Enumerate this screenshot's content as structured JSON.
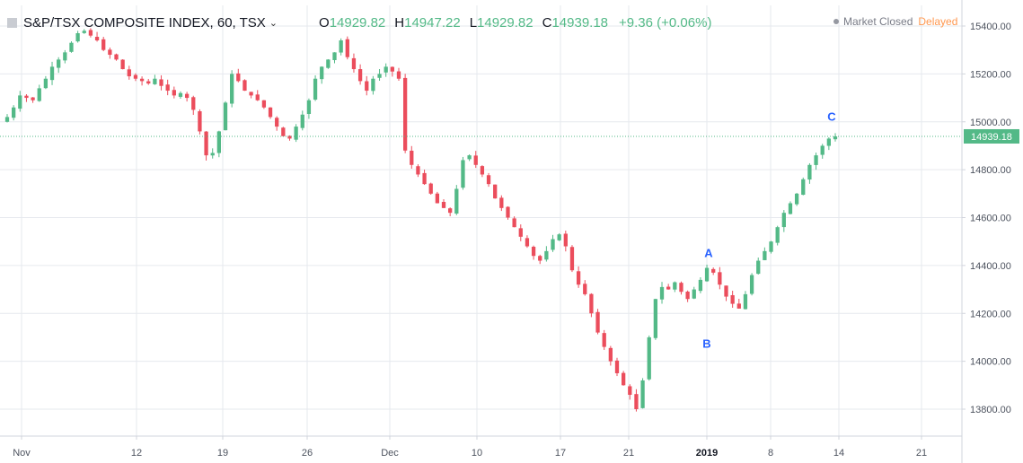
{
  "header": {
    "symbol": "S&P/TSX COMPOSITE INDEX, 60, TSX",
    "open_label": "O",
    "open": "14929.82",
    "high_label": "H",
    "high": "14947.22",
    "low_label": "L",
    "low": "14929.82",
    "close_label": "C",
    "close": "14939.18",
    "change": "+9.36 (+0.06%)"
  },
  "status": {
    "market": "Market Closed",
    "delay": "Delayed"
  },
  "colors": {
    "up": "#53b987",
    "down": "#eb4d5c",
    "grid": "#e6e9ee",
    "last_line": "#53b987",
    "annotation": "#2962ff"
  },
  "chart_data": {
    "type": "candlestick",
    "title": "S&P/TSX COMPOSITE INDEX, 60, TSX",
    "y_range": [
      13700,
      15450
    ],
    "y_ticks": [
      "15400.00",
      "15200.00",
      "15000.00",
      "14800.00",
      "14600.00",
      "14400.00",
      "14200.00",
      "14000.00",
      "13800.00"
    ],
    "x_ticks": [
      {
        "label": "Nov",
        "bold": false
      },
      {
        "label": "12",
        "bold": false
      },
      {
        "label": "19",
        "bold": false
      },
      {
        "label": "26",
        "bold": false
      },
      {
        "label": "Dec",
        "bold": false
      },
      {
        "label": "10",
        "bold": false
      },
      {
        "label": "17",
        "bold": false
      },
      {
        "label": "21",
        "bold": false
      },
      {
        "label": "2019",
        "bold": true
      },
      {
        "label": "8",
        "bold": false
      },
      {
        "label": "14",
        "bold": false
      },
      {
        "label": "21",
        "bold": false
      }
    ],
    "last_price": "14939.18",
    "annotations": [
      {
        "label": "A",
        "value": 14420
      },
      {
        "label": "B",
        "value": 14110
      },
      {
        "label": "C",
        "value": 14990
      }
    ],
    "series": [
      {
        "name": "close",
        "values": [
          15020,
          15060,
          15110,
          15100,
          15090,
          15140,
          15180,
          15230,
          15260,
          15290,
          15330,
          15370,
          15380,
          15360,
          15340,
          15300,
          15280,
          15260,
          15220,
          15190,
          15180,
          15170,
          15160,
          15180,
          15150,
          15130,
          15110,
          15120,
          15100,
          15050,
          14960,
          14860,
          14870,
          14960,
          15080,
          15200,
          15170,
          15130,
          15110,
          15090,
          15060,
          15020,
          14980,
          14940,
          14930,
          14980,
          15030,
          15090,
          15180,
          15230,
          15260,
          15290,
          15340,
          15270,
          15220,
          15170,
          15130,
          15180,
          15200,
          15230,
          15210,
          15180,
          14880,
          14820,
          14780,
          14740,
          14700,
          14660,
          14640,
          14620,
          14720,
          14840,
          14860,
          14820,
          14780,
          14740,
          14680,
          14640,
          14600,
          14560,
          14520,
          14480,
          14440,
          14420,
          14460,
          14510,
          14530,
          14480,
          14380,
          14320,
          14280,
          14200,
          14120,
          14060,
          14000,
          13950,
          13900,
          13860,
          13800,
          13920,
          14100,
          14260,
          14310,
          14300,
          14330,
          14290,
          14260,
          14300,
          14340,
          14390,
          14370,
          14320,
          14270,
          14240,
          14220,
          14280,
          14360,
          14420,
          14460,
          14500,
          14560,
          14620,
          14660,
          14700,
          14760,
          14820,
          14860,
          14900,
          14930,
          14939
        ]
      }
    ]
  }
}
